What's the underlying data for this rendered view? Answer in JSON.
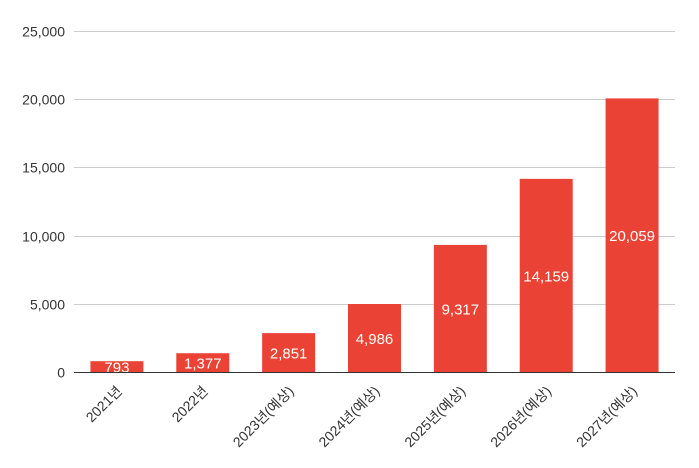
{
  "chart_data": {
    "type": "bar",
    "categories": [
      "2021년",
      "2022년",
      "2023년(예상)",
      "2024년(예상)",
      "2025년(예상)",
      "2026년(예상)",
      "2027년(예상)"
    ],
    "values": [
      793,
      1377,
      2851,
      4986,
      9317,
      14159,
      20059
    ],
    "data_labels": [
      "793",
      "1,377",
      "2,851",
      "4,986",
      "9,317",
      "14,159",
      "20,059"
    ],
    "y_ticks": [
      0,
      5000,
      10000,
      15000,
      20000,
      25000
    ],
    "y_tick_labels": [
      "0",
      "5,000",
      "10,000",
      "15,000",
      "20,000",
      "25,000"
    ],
    "ylim": [
      0,
      25000
    ],
    "grid": true,
    "bar_color": "#ea4335",
    "title": "",
    "xlabel": "",
    "ylabel": ""
  }
}
